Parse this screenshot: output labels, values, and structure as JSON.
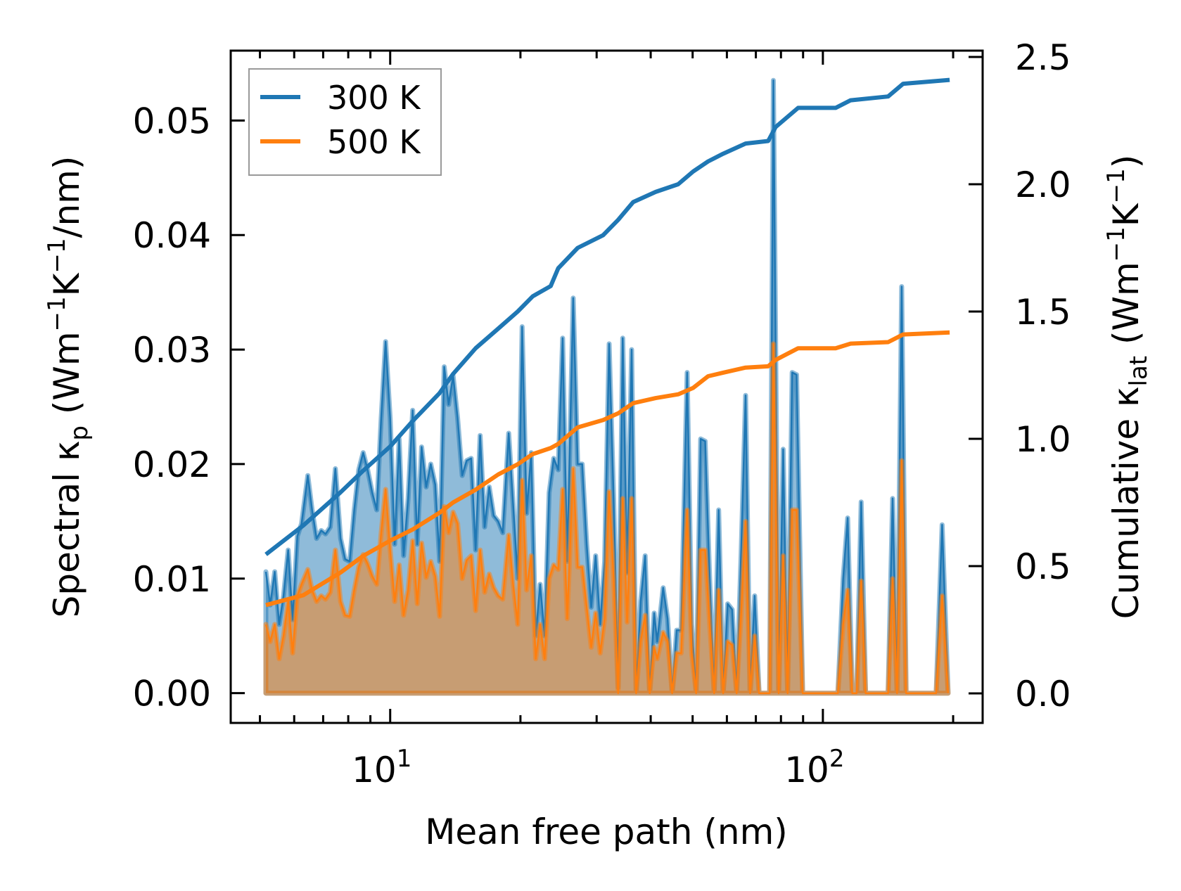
{
  "chart_data": {
    "type": "line",
    "xscale": "log",
    "xlabel": "Mean free path (nm)",
    "ylabel_left_parts": [
      {
        "t": "Spectral κ"
      },
      {
        "t": "p",
        "sub": true
      },
      {
        "t": " (Wm"
      },
      {
        "t": "−1",
        "sup": true
      },
      {
        "t": "K"
      },
      {
        "t": "−1",
        "sup": true
      },
      {
        "t": "/nm)"
      }
    ],
    "ylabel_right_parts": [
      {
        "t": "Cumulative κ"
      },
      {
        "t": "lat",
        "sub": true
      },
      {
        "t": " (Wm"
      },
      {
        "t": "−1",
        "sup": true
      },
      {
        "t": "K"
      },
      {
        "t": "−1",
        "sup": true
      },
      {
        "t": ")"
      }
    ],
    "xlim": [
      4.28,
      234
    ],
    "ylim_left": [
      -0.0026,
      0.0561
    ],
    "ylim_right": [
      -0.116,
      2.525
    ],
    "x_ticks": [
      {
        "value": 10,
        "base": "10",
        "exp": "1"
      },
      {
        "value": 100,
        "base": "10",
        "exp": "2"
      }
    ],
    "y_left_ticks": [
      {
        "value": 0,
        "label": "0.00"
      },
      {
        "value": 0.01,
        "label": "0.01"
      },
      {
        "value": 0.02,
        "label": "0.02"
      },
      {
        "value": 0.03,
        "label": "0.03"
      },
      {
        "value": 0.04,
        "label": "0.04"
      },
      {
        "value": 0.05,
        "label": "0.05"
      }
    ],
    "y_right_ticks": [
      {
        "value": 0,
        "label": "0.0"
      },
      {
        "value": 0.5,
        "label": "0.5"
      },
      {
        "value": 1.0,
        "label": "1.0"
      },
      {
        "value": 1.5,
        "label": "1.5"
      },
      {
        "value": 2.0,
        "label": "2.0"
      },
      {
        "value": 2.5,
        "label": "2.5"
      }
    ],
    "grid": false,
    "legend": {
      "placement": "top-left",
      "entries": [
        {
          "label": "300 K",
          "color": "#1f77b4"
        },
        {
          "label": "500 K",
          "color": "#ff7f0e"
        }
      ]
    },
    "spectral": {
      "axis": "left",
      "x": [
        5.16,
        5.28,
        5.41,
        5.54,
        5.67,
        5.81,
        5.95,
        6.1,
        6.24,
        6.45,
        6.6,
        6.76,
        6.93,
        7.09,
        7.27,
        7.47,
        7.68,
        7.87,
        8.06,
        8.26,
        8.46,
        8.66,
        8.87,
        9.09,
        9.31,
        9.53,
        9.76,
        10.0,
        10.24,
        10.49,
        10.74,
        11.0,
        11.27,
        11.55,
        11.82,
        12.11,
        12.41,
        12.71,
        13.01,
        13.33,
        13.65,
        13.98,
        14.32,
        14.67,
        15.02,
        15.39,
        15.76,
        16.14,
        16.53,
        16.94,
        17.35,
        17.77,
        18.2,
        18.79,
        19.24,
        19.71,
        20.18,
        20.67,
        21.18,
        21.69,
        22.21,
        22.75,
        23.3,
        23.87,
        24.45,
        25.04,
        25.65,
        26.48,
        27.12,
        27.78,
        28.45,
        29.14,
        29.84,
        30.57,
        31.31,
        32.07,
        32.84,
        33.64,
        34.46,
        35.29,
        36.15,
        37.02,
        37.92,
        38.84,
        39.78,
        40.74,
        41.4,
        42.74,
        43.77,
        44.84,
        45.92,
        47.04,
        48.56,
        49.74,
        50.95,
        52.18,
        53.44,
        54.74,
        56.06,
        57.43,
        58.81,
        60.24,
        61.7,
        63.2,
        64.73,
        66.29,
        67.9,
        69.55,
        71.23,
        72.96,
        75.32,
        76.84,
        79.02,
        80.94,
        82.89,
        84.91,
        86.96,
        89.78,
        107.0,
        108.3,
        111.4,
        114.1,
        116.9,
        119.7,
        122.6,
        125.5,
        141.5,
        144.9,
        148.4,
        152.1,
        155.7,
        182.7,
        188.6,
        194.7
      ],
      "series": [
        {
          "name": "300 K",
          "color": "#1f77b4",
          "values": [
            0.0106,
            0.0077,
            0.0106,
            0.006,
            0.0085,
            0.0125,
            0.0064,
            0.0137,
            0.0148,
            0.019,
            0.016,
            0.0135,
            0.0142,
            0.0139,
            0.0145,
            0.0196,
            0.0135,
            0.0117,
            0.0115,
            0.016,
            0.0195,
            0.021,
            0.0195,
            0.0175,
            0.016,
            0.024,
            0.0307,
            0.024,
            0.013,
            0.0222,
            0.012,
            0.017,
            0.0247,
            0.013,
            0.0215,
            0.018,
            0.02,
            0.0182,
            0.0115,
            0.0285,
            0.0252,
            0.0277,
            0.024,
            0.019,
            0.0203,
            0.0205,
            0.0125,
            0.0225,
            0.0145,
            0.018,
            0.0155,
            0.015,
            0.014,
            0.0227,
            0.0165,
            0.01,
            0.032,
            0.0157,
            0.021,
            0.005,
            0.0095,
            0.005,
            0.0175,
            0.0205,
            0.0195,
            0.031,
            0.0115,
            0.0345,
            0.02,
            0.02,
            0.013,
            0.0075,
            0.012,
            0.006,
            0.0115,
            0.0305,
            0.017,
            0.0005,
            0.031,
            0.0105,
            0.03,
            0,
            0.008,
            0.012,
            0,
            0.007,
            0.0045,
            0.0092,
            0.0065,
            0,
            0.0055,
            0.0055,
            0.028,
            0.006,
            0,
            0.0222,
            0.022,
            0.01,
            0,
            0.016,
            0,
            0.0078,
            0.0073,
            0,
            0.0123,
            0.026,
            0,
            0.0085,
            0,
            0,
            0,
            0.0535,
            0,
            0.0213,
            0,
            0.028,
            0.0278,
            0,
            0,
            0,
            0.01,
            0.0153,
            0,
            0,
            0.0167,
            0,
            0,
            0.017,
            0,
            0.0355,
            0,
            0,
            0.0147,
            0
          ]
        },
        {
          "name": "500 K",
          "color": "#ff7f0e",
          "values": [
            0.006,
            0.0045,
            0.006,
            0.003,
            0.005,
            0.008,
            0.0035,
            0.0085,
            0.0095,
            0.0108,
            0.009,
            0.008,
            0.0085,
            0.0082,
            0.0088,
            0.0125,
            0.008,
            0.0068,
            0.0067,
            0.009,
            0.011,
            0.0121,
            0.0113,
            0.0102,
            0.0095,
            0.014,
            0.0178,
            0.0125,
            0.008,
            0.0112,
            0.0068,
            0.009,
            0.0133,
            0.0078,
            0.0131,
            0.0101,
            0.0115,
            0.0102,
            0.0067,
            0.0163,
            0.014,
            0.0158,
            0.0148,
            0.01,
            0.0116,
            0.012,
            0.0072,
            0.0125,
            0.0088,
            0.0104,
            0.0092,
            0.0085,
            0.0082,
            0.0138,
            0.0095,
            0.006,
            0.0186,
            0.009,
            0.012,
            0.003,
            0.006,
            0.003,
            0.01,
            0.0112,
            0.0108,
            0.0178,
            0.0065,
            0.0196,
            0.011,
            0.011,
            0.0075,
            0.004,
            0.007,
            0.0035,
            0.0065,
            0.0176,
            0.01,
            0,
            0.017,
            0.0062,
            0.017,
            0,
            0.0045,
            0.0068,
            0,
            0.004,
            0.003,
            0.0053,
            0.0045,
            0,
            0.0035,
            0.0035,
            0.016,
            0.0035,
            0,
            0.0125,
            0.0125,
            0.006,
            0,
            0.009,
            0,
            0.0045,
            0.0042,
            0,
            0.007,
            0.015,
            0,
            0.005,
            0,
            0,
            0,
            0.0305,
            0,
            0.012,
            0,
            0.016,
            0.016,
            0,
            0,
            0,
            0.006,
            0.009,
            0,
            0,
            0.0098,
            0,
            0,
            0.01,
            0,
            0.0203,
            0,
            0,
            0.0085,
            0
          ]
        }
      ]
    },
    "cumulative": {
      "axis": "right",
      "x": [
        5.16,
        6.3,
        7.68,
        8.66,
        10.0,
        11.27,
        13.01,
        13.98,
        15.76,
        17.77,
        19.71,
        21.35,
        23.49,
        24.45,
        27.12,
        31.06,
        33.64,
        36.43,
        41.07,
        46.29,
        50.14,
        54.3,
        58.81,
        66.29,
        74.73,
        77.78,
        87.66,
        107.0,
        115.9,
        141.5,
        153.3,
        196.3
      ],
      "series": [
        {
          "name": "300 K",
          "color": "#1f77b4",
          "values": [
            0.546,
            0.66,
            0.79,
            0.875,
            0.97,
            1.07,
            1.18,
            1.255,
            1.356,
            1.433,
            1.5,
            1.56,
            1.6,
            1.67,
            1.75,
            1.8,
            1.86,
            1.93,
            1.97,
            2.0,
            2.05,
            2.09,
            2.12,
            2.16,
            2.17,
            2.225,
            2.3,
            2.3,
            2.33,
            2.345,
            2.395,
            2.41
          ]
        },
        {
          "name": "500 K",
          "color": "#ff7f0e",
          "values": [
            0.347,
            0.386,
            0.475,
            0.54,
            0.6,
            0.644,
            0.71,
            0.75,
            0.8,
            0.86,
            0.9,
            0.94,
            0.964,
            0.98,
            1.045,
            1.074,
            1.1,
            1.14,
            1.16,
            1.175,
            1.2,
            1.246,
            1.26,
            1.28,
            1.285,
            1.31,
            1.356,
            1.356,
            1.374,
            1.38,
            1.41,
            1.418
          ]
        }
      ]
    }
  }
}
